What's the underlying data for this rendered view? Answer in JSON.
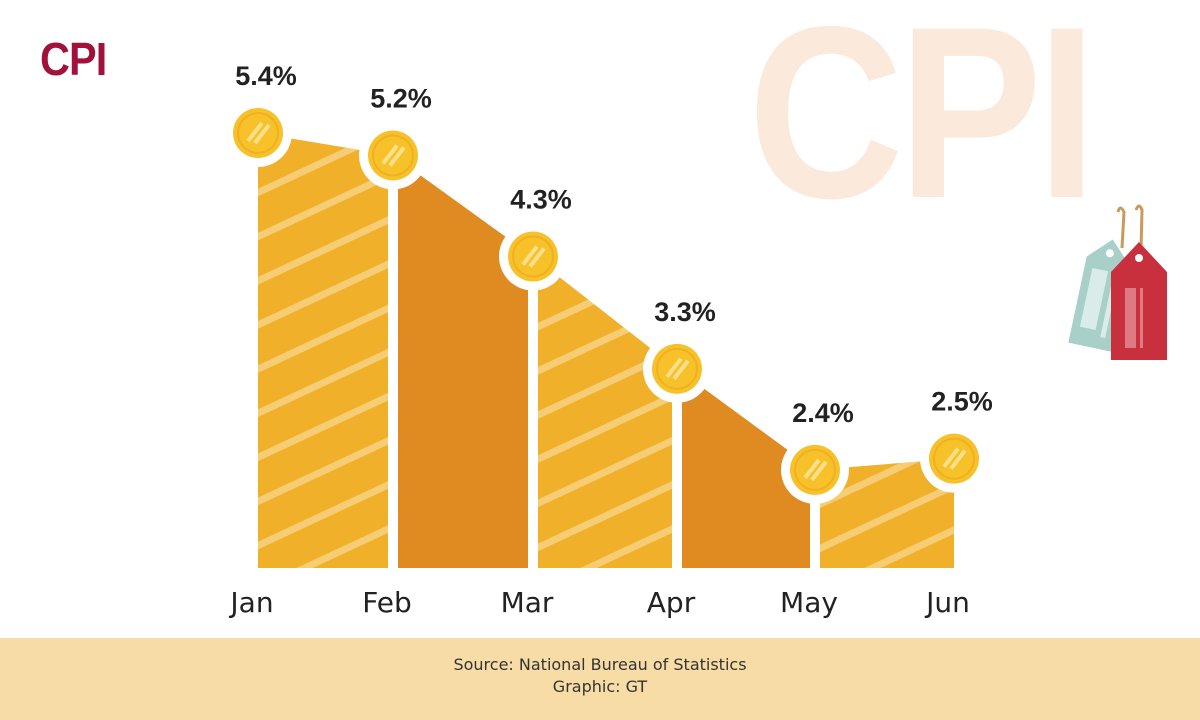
{
  "title": "CPI",
  "background_word": "CPI",
  "footer": {
    "source": "Source: National Bureau of Statistics",
    "graphic": "Graphic: GT"
  },
  "colors": {
    "title": "#a0123c",
    "yellow": "#f0b02a",
    "orange": "#e08b22",
    "coin": "#f7c12a",
    "tag_red": "#c8303e",
    "tag_teal": "#a9cfc9",
    "footer_bg": "#f8dca6"
  },
  "chart_data": {
    "type": "area",
    "categories": [
      "Jan",
      "Feb",
      "Mar",
      "Apr",
      "May",
      "Jun"
    ],
    "values": [
      5.4,
      5.2,
      4.3,
      3.3,
      2.4,
      2.5
    ],
    "labels": [
      "5.4%",
      "5.2%",
      "4.3%",
      "3.3%",
      "2.4%",
      "2.5%"
    ],
    "title": "CPI",
    "xlabel": "",
    "ylabel": "",
    "grid": false
  }
}
